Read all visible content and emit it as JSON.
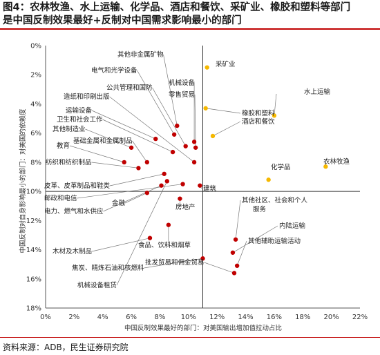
{
  "title_line1": "图4：农林牧渔、水上运输、化学品、酒店和餐饮、采矿业、橡胶和塑料等部门",
  "title_line2": "是中国反制效果最好+反制对中国需求影响最小的部门",
  "source": "资料来源：ADB，民生证券研究院",
  "colors": {
    "red": "#c00000",
    "yellow": "#f5b800",
    "title_rule": "#c00000"
  },
  "chart_data": {
    "type": "scatter",
    "xlabel": "中国反制效果最好的部门：对美国输出增加值拉动占比",
    "ylabel": "中国反制对自身影响最小的部门：对美国的依赖度",
    "xlim": [
      0,
      22
    ],
    "ylim": [
      0,
      18
    ],
    "y_inverted": true,
    "x_ticks": [
      "0%",
      "2%",
      "4%",
      "6%",
      "8%",
      "10%",
      "12%",
      "14%",
      "16%",
      "18%",
      "20%",
      "22%"
    ],
    "y_ticks": [
      "0%",
      "2%",
      "4%",
      "6%",
      "8%",
      "10%",
      "12%",
      "14%",
      "16%",
      "18%"
    ],
    "reference_lines": {
      "x": 11,
      "y": 10
    },
    "points": [
      {
        "label": "采矿业",
        "x": 11.3,
        "y": 1.5,
        "color": "yellow"
      },
      {
        "label": "水上运输",
        "x": 16.0,
        "y": 4.8,
        "color": "yellow"
      },
      {
        "label": "橡胶和塑料",
        "x": 11.2,
        "y": 4.3,
        "color": "yellow"
      },
      {
        "label": "酒店和餐饮",
        "x": 11.7,
        "y": 6.2,
        "color": "yellow"
      },
      {
        "label": "农林牧渔",
        "x": 19.6,
        "y": 8.3,
        "color": "yellow"
      },
      {
        "label": "化学品",
        "x": 15.6,
        "y": 9.2,
        "color": "yellow"
      },
      {
        "label": "其他非金属矿物",
        "x": 9.2,
        "y": 5.5,
        "color": "red"
      },
      {
        "label": "电气和光学设备",
        "x": 9.0,
        "y": 6.1,
        "color": "red"
      },
      {
        "label": "公共管理和国防",
        "x": 9.8,
        "y": 6.9,
        "color": "red"
      },
      {
        "label": "机械设备",
        "x": 10.4,
        "y": 6.6,
        "color": "red"
      },
      {
        "label": "零售贸易",
        "x": 10.5,
        "y": 7.0,
        "color": "red"
      },
      {
        "label": "造纸和印刷出版",
        "x": 10.4,
        "y": 8.0,
        "color": "red"
      },
      {
        "label": "运输设备",
        "x": 7.7,
        "y": 6.4,
        "color": "red"
      },
      {
        "label": "卫生和社会工作",
        "x": 8.9,
        "y": 7.3,
        "color": "red"
      },
      {
        "label": "其他制造业",
        "x": 6.0,
        "y": 7.0,
        "color": "red"
      },
      {
        "label": "基础金属和金属制品",
        "x": 7.1,
        "y": 8.0,
        "color": "red"
      },
      {
        "label": "教育",
        "x": 5.5,
        "y": 8.0,
        "color": "red"
      },
      {
        "label": "纺织和纺织制品",
        "x": 6.5,
        "y": 8.4,
        "color": "red"
      },
      {
        "label": "皮革、皮革制品和鞋类",
        "x": 8.3,
        "y": 8.8,
        "color": "red"
      },
      {
        "label": "邮政和电信",
        "x": 9.6,
        "y": 9.5,
        "color": "red"
      },
      {
        "label": "电力、燃气和水供应",
        "x": 8.1,
        "y": 9.6,
        "color": "red"
      },
      {
        "label": "建筑",
        "x": 10.8,
        "y": 9.6,
        "color": "red"
      },
      {
        "label": "金融",
        "x": 7.1,
        "y": 10.1,
        "color": "red"
      },
      {
        "label": "房地产",
        "x": 9.4,
        "y": 10.5,
        "color": "red"
      },
      {
        "label": "木材及木制品",
        "x": 7.3,
        "y": 13.2,
        "color": "red"
      },
      {
        "label": "其他社区、社会和个人服务",
        "x": 13.3,
        "y": 13.3,
        "color": "red"
      },
      {
        "label": "内陆运输",
        "x": 13.1,
        "y": 14.2,
        "color": "red"
      },
      {
        "label": "食品、饮料和烟草",
        "x": 8.6,
        "y": 12.3,
        "color": "red"
      },
      {
        "label": "焦炭、精炼石油和核燃料",
        "x": 11.0,
        "y": 14.6,
        "color": "red"
      },
      {
        "label": "其他辅助运输活动",
        "x": 13.4,
        "y": 15.1,
        "color": "red"
      },
      {
        "label": "批发贸易和佣金贸易",
        "x": 13.2,
        "y": 15.6,
        "color": "red"
      },
      {
        "label": "机械设备租赁",
        "x": 8.5,
        "y": 9.3,
        "color": "red"
      }
    ]
  }
}
